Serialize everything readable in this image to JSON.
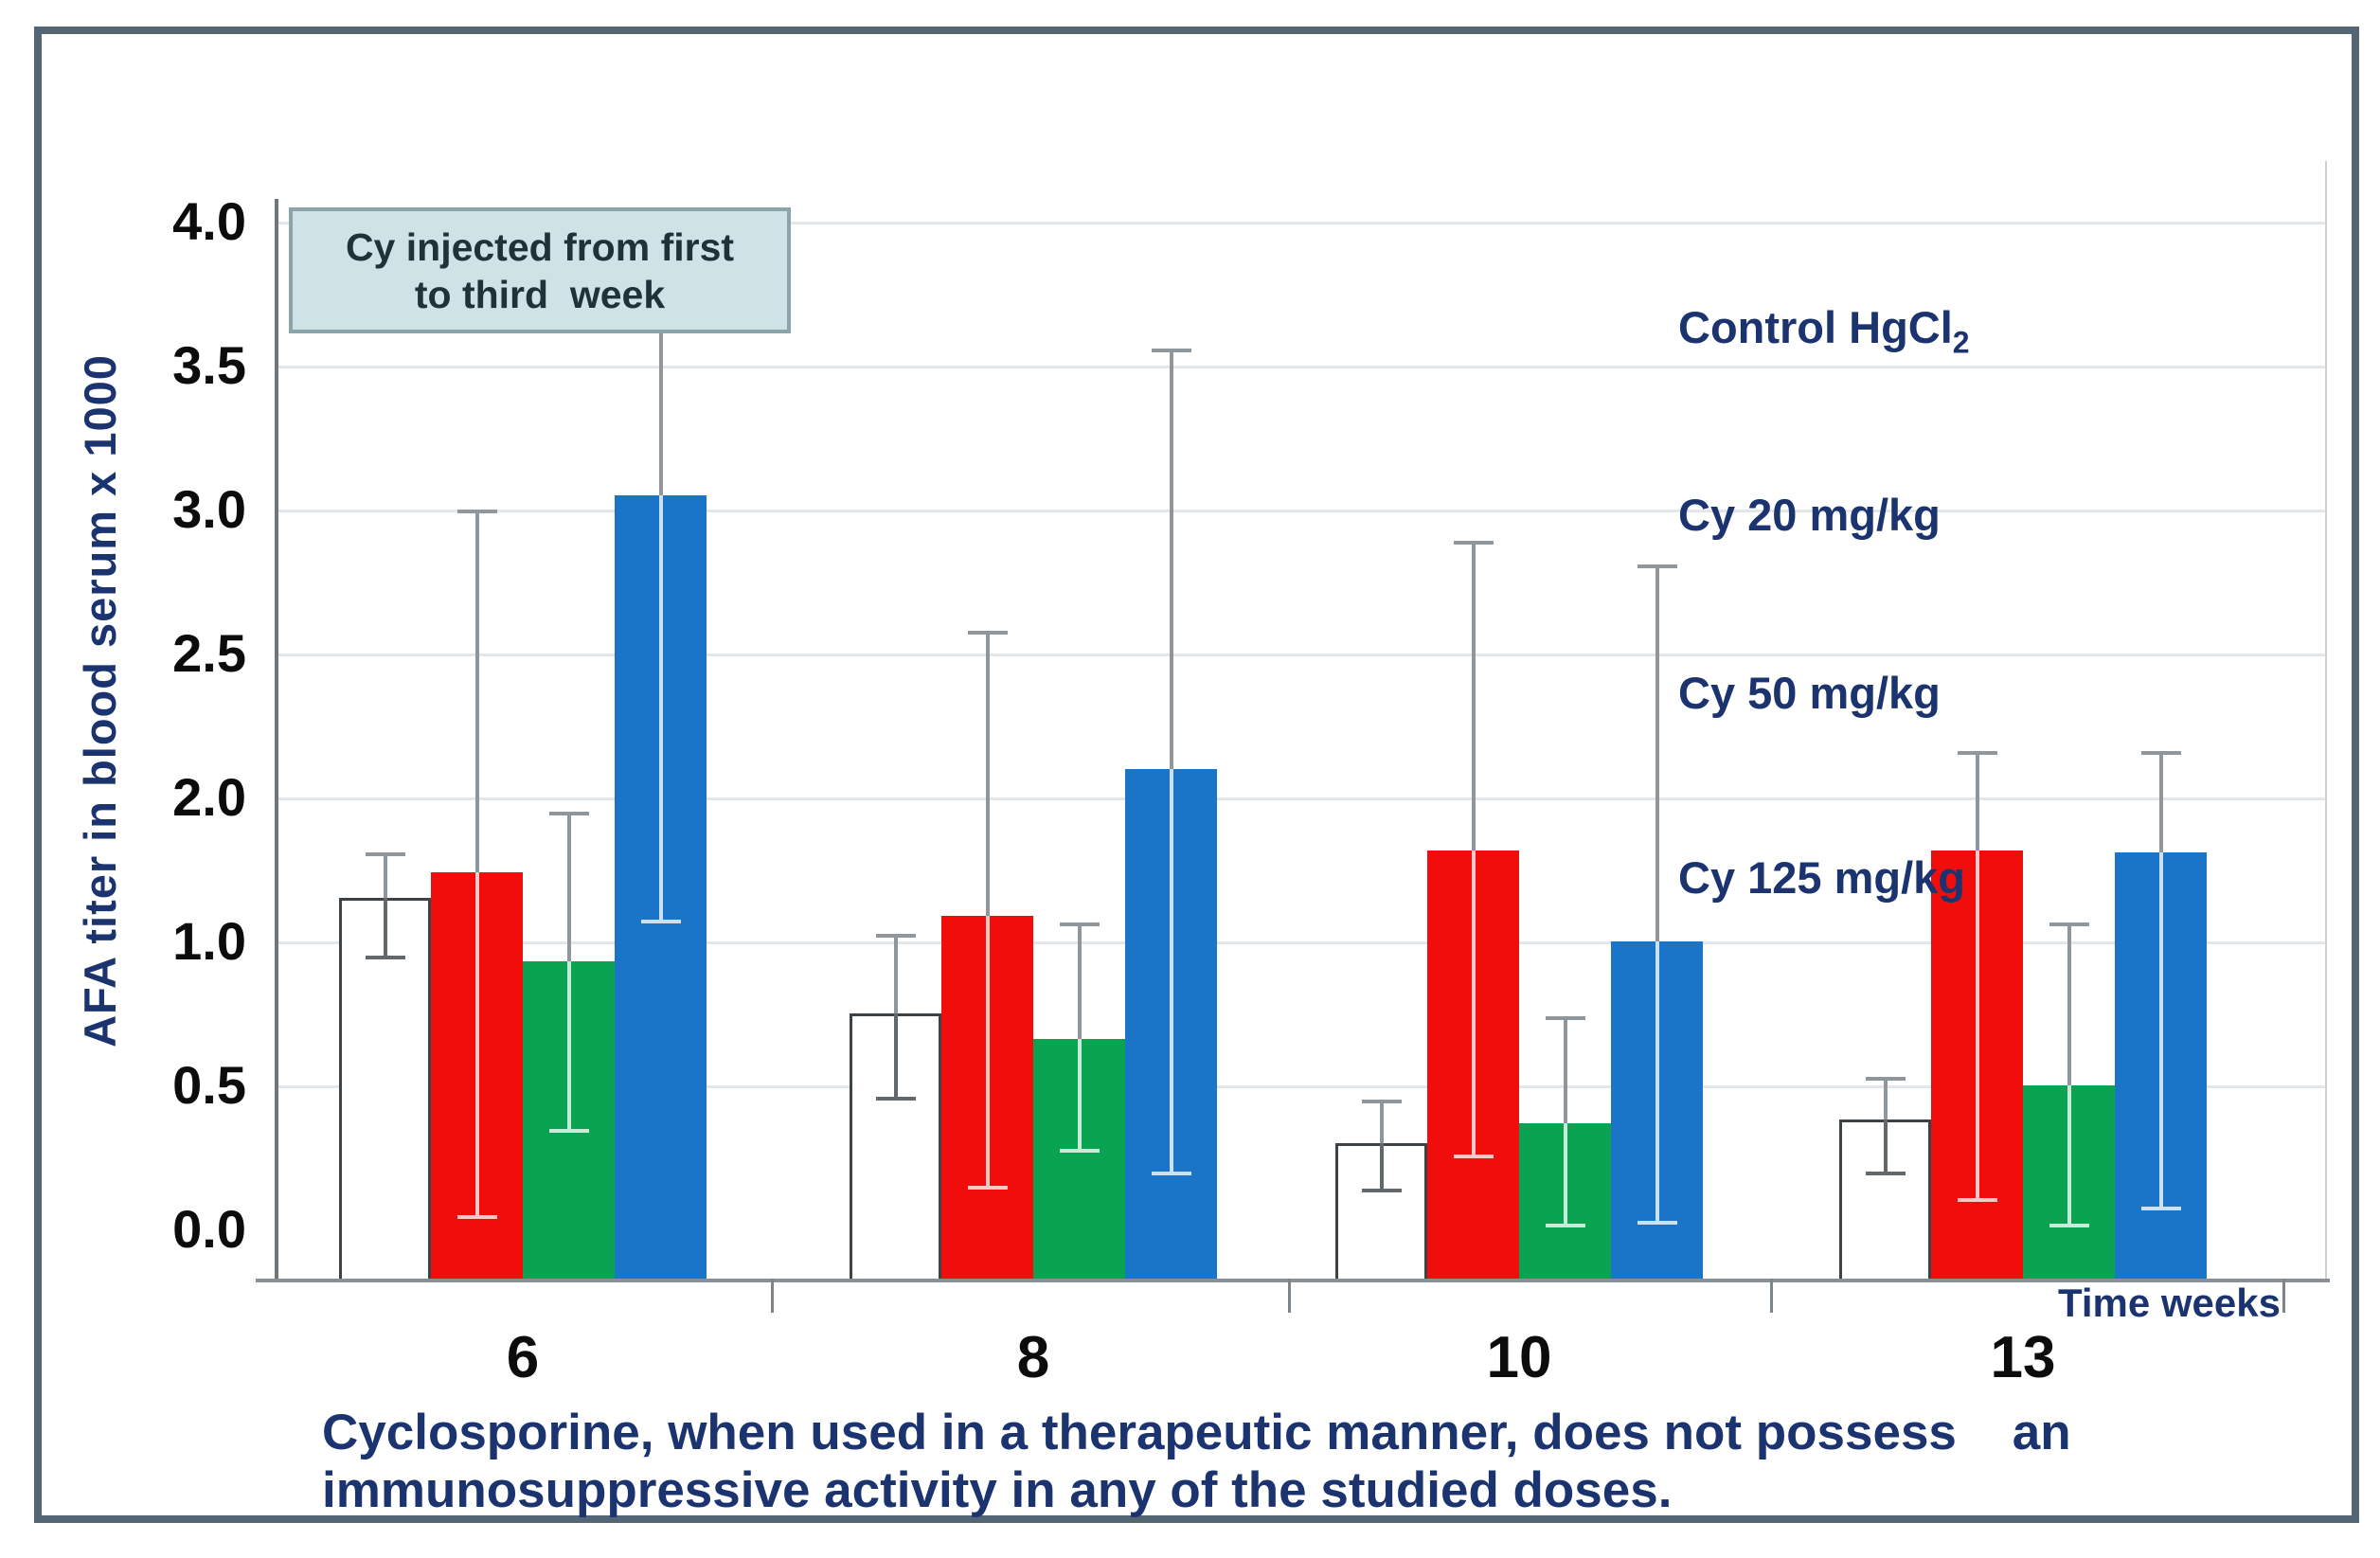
{
  "figure": {
    "background": "#ffffff",
    "border_color": "#546573"
  },
  "y_axis": {
    "title": "AFA titer in blood serum x 1000",
    "tick_labels": [
      "4.0",
      "3.5",
      "3.0",
      "2.5",
      "2.0",
      "1.0",
      "0.5",
      "0.0"
    ]
  },
  "x_axis": {
    "title": "Time weeks",
    "categories": [
      "6",
      "8",
      "10",
      "13"
    ]
  },
  "annotation": {
    "line1": "Cy injected from first",
    "line2": "to third  week"
  },
  "legend": {
    "position": "right",
    "items": [
      {
        "text": "Control HgCl",
        "sub": "2"
      },
      {
        "text": "Cy 20 mg/kg",
        "sub": ""
      },
      {
        "text": "Cy 50 mg/kg",
        "sub": ""
      },
      {
        "text": "Cy 125 mg/kg",
        "sub": ""
      }
    ]
  },
  "caption": {
    "line1": "Cyclosporine, when used in a therapeutic manner, does not possess    an",
    "line2": "immunosuppressive activity in any of the studied doses."
  },
  "chart_data": {
    "type": "bar",
    "title": "",
    "xlabel": "Time weeks",
    "ylabel": "AFA titer in blood serum x 1000",
    "categories": [
      "6",
      "8",
      "10",
      "13"
    ],
    "ylim": [
      0,
      4
    ],
    "ytick_labels_as_shown": [
      "4.0",
      "3.5",
      "3.0",
      "2.5",
      "2.0",
      "1.0",
      "0.5",
      "0.0"
    ],
    "grid": true,
    "legend_position": "right",
    "annotation_text": "Cy injected from first to third  week",
    "colors": {
      "control": "#ffffff",
      "cy20": "#f20d0d",
      "cy50": "#0aa351",
      "cy125": "#1a75c9",
      "error_bar": "#8f969c",
      "text_navy": "#1b3470"
    },
    "series": [
      {
        "name": "Control HgCl2",
        "color": "#ffffff",
        "values": [
          1.3,
          0.75,
          0.3,
          0.38
        ],
        "error_low": [
          0.95,
          0.46,
          0.14,
          0.2
        ],
        "error_high": [
          1.62,
          1.05,
          0.45,
          0.53
        ]
      },
      {
        "name": "Cy 20 mg/kg",
        "color": "#f20d0d",
        "values": [
          1.48,
          1.18,
          1.63,
          1.63
        ],
        "error_low": [
          0.05,
          0.15,
          0.26,
          0.11
        ],
        "error_high": [
          3.0,
          2.58,
          2.89,
          2.16
        ]
      },
      {
        "name": "Cy 50 mg/kg",
        "color": "#0aa351",
        "values": [
          0.93,
          0.66,
          0.37,
          0.5
        ],
        "error_low": [
          0.35,
          0.28,
          0.02,
          0.02
        ],
        "error_high": [
          1.9,
          1.13,
          0.74,
          1.13
        ]
      },
      {
        "name": "Cy 125 mg/kg",
        "color": "#1a75c9",
        "values": [
          3.05,
          2.1,
          1.0,
          1.62
        ],
        "error_low": [
          1.15,
          0.2,
          0.03,
          0.08
        ],
        "error_high": [
          3.65,
          3.56,
          2.81,
          2.16
        ]
      }
    ]
  }
}
